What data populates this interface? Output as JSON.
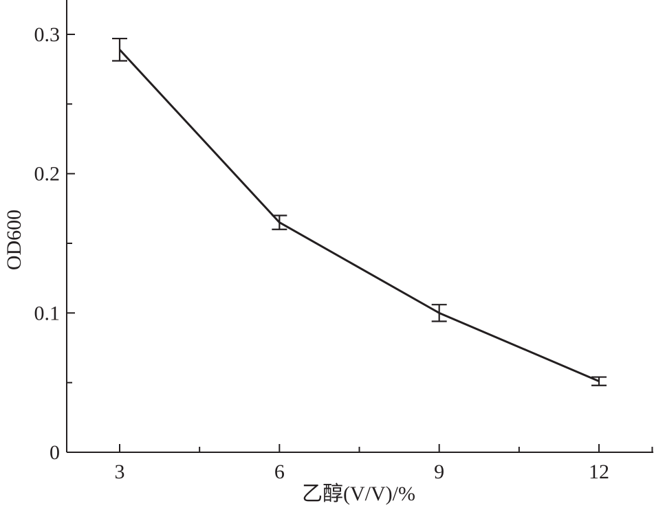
{
  "chart_data": {
    "type": "line",
    "title": "",
    "xlabel": "乙醇(V/V)/%",
    "ylabel": "OD600",
    "x": [
      3,
      6,
      9,
      12
    ],
    "xlim": [
      2,
      13
    ],
    "ylim": [
      0,
      0.32
    ],
    "x_ticks_labeled": [
      {
        "value": 3,
        "label": "3"
      },
      {
        "value": 6,
        "label": "6"
      },
      {
        "value": 9,
        "label": "9"
      },
      {
        "value": 12,
        "label": "12"
      }
    ],
    "x_ticks_minor": [
      4.5,
      7.5,
      10.5,
      13
    ],
    "y_ticks_labeled": [
      {
        "value": 0,
        "label": "0"
      },
      {
        "value": 0.1,
        "label": "0.1"
      },
      {
        "value": 0.2,
        "label": "0.2"
      },
      {
        "value": 0.3,
        "label": "0.3"
      }
    ],
    "y_ticks_minor": [
      0.05,
      0.15,
      0.25
    ],
    "series": [
      {
        "values": [
          0.289,
          0.165,
          0.1,
          0.051
        ],
        "errors": [
          0.008,
          0.005,
          0.006,
          0.003
        ]
      }
    ],
    "grid": false,
    "legend": "none",
    "color": "#231f20"
  }
}
